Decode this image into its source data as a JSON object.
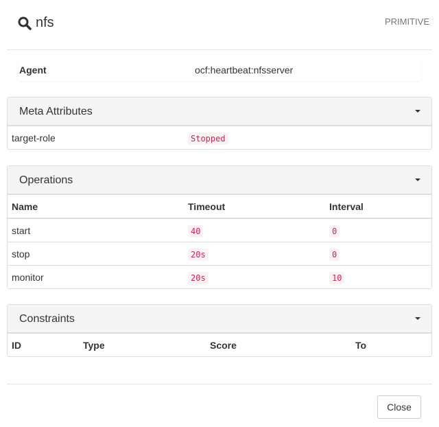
{
  "header": {
    "title": "nfs",
    "type": "PRIMITIVE",
    "icon": "search-icon"
  },
  "agent": {
    "label": "Agent",
    "value": "ocf:heartbeat:nfsserver"
  },
  "meta": {
    "title": "Meta Attributes",
    "rows": [
      {
        "name": "target-role",
        "value": "Stopped"
      }
    ]
  },
  "operations": {
    "title": "Operations",
    "columns": [
      "Name",
      "Timeout",
      "Interval"
    ],
    "rows": [
      {
        "name": "start",
        "timeout": "40",
        "interval": "0"
      },
      {
        "name": "stop",
        "timeout": "20s",
        "interval": "0"
      },
      {
        "name": "monitor",
        "timeout": "20s",
        "interval": "10"
      }
    ]
  },
  "constraints": {
    "title": "Constraints",
    "columns": [
      "ID",
      "Type",
      "Score",
      "To"
    ]
  },
  "footer": {
    "close": "Close"
  }
}
